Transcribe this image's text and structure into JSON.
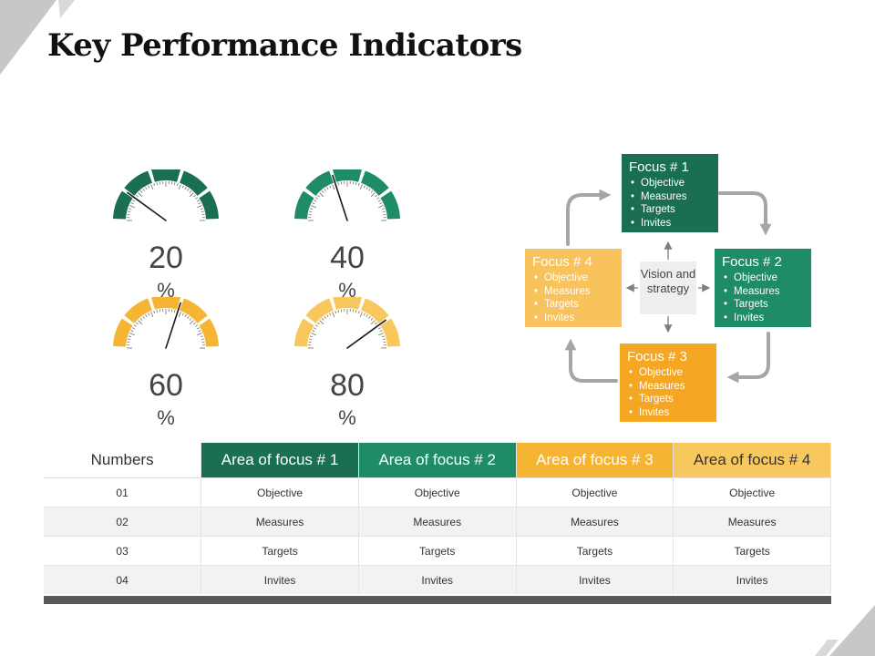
{
  "title": "Key Performance Indicators",
  "gauges": [
    {
      "value": 20,
      "number": "20",
      "unit": "%",
      "color": "#1a6f52",
      "light": false
    },
    {
      "value": 40,
      "number": "40",
      "unit": "%",
      "color": "#1e8c65",
      "light": false
    },
    {
      "value": 60,
      "number": "60",
      "unit": "%",
      "color": "#f5b533",
      "light": false
    },
    {
      "value": 80,
      "number": "80",
      "unit": "%",
      "color": "#f8c85e",
      "light": true
    }
  ],
  "cycle": {
    "center": "Vision and strategy",
    "boxes": [
      {
        "title": "Focus # 1",
        "items": [
          "Objective",
          "Measures",
          "Targets",
          "Invites"
        ],
        "color": "#1a6f52"
      },
      {
        "title": "Focus # 2",
        "items": [
          "Objective",
          "Measures",
          "Targets",
          "Invites"
        ],
        "color": "#1e8c65"
      },
      {
        "title": "Focus # 3",
        "items": [
          "Objective",
          "Measures",
          "Targets",
          "Invites"
        ],
        "color": "#f5a623"
      },
      {
        "title": "Focus # 4",
        "items": [
          "Objective",
          "Measures",
          "Targets",
          "Invites"
        ],
        "color": "#f8c25c"
      }
    ]
  },
  "table": {
    "headers": [
      "Numbers",
      "Area of focus # 1",
      "Area of focus # 2",
      "Area of focus # 3",
      "Area of focus # 4"
    ],
    "header_colors": [
      "#ffffff",
      "#1a6f52",
      "#1e8c65",
      "#f5b533",
      "#f8c85e"
    ],
    "header_text_colors": [
      "#333333",
      "#ffffff",
      "#ffffff",
      "#ffffff",
      "#333333"
    ],
    "rows": [
      [
        "01",
        "Objective",
        "Objective",
        "Objective",
        "Objective"
      ],
      [
        "02",
        "Measures",
        "Measures",
        "Measures",
        "Measures"
      ],
      [
        "03",
        "Targets",
        "Targets",
        "Targets",
        "Targets"
      ],
      [
        "04",
        "Invites",
        "Invites",
        "Invites",
        "Invites"
      ]
    ]
  }
}
